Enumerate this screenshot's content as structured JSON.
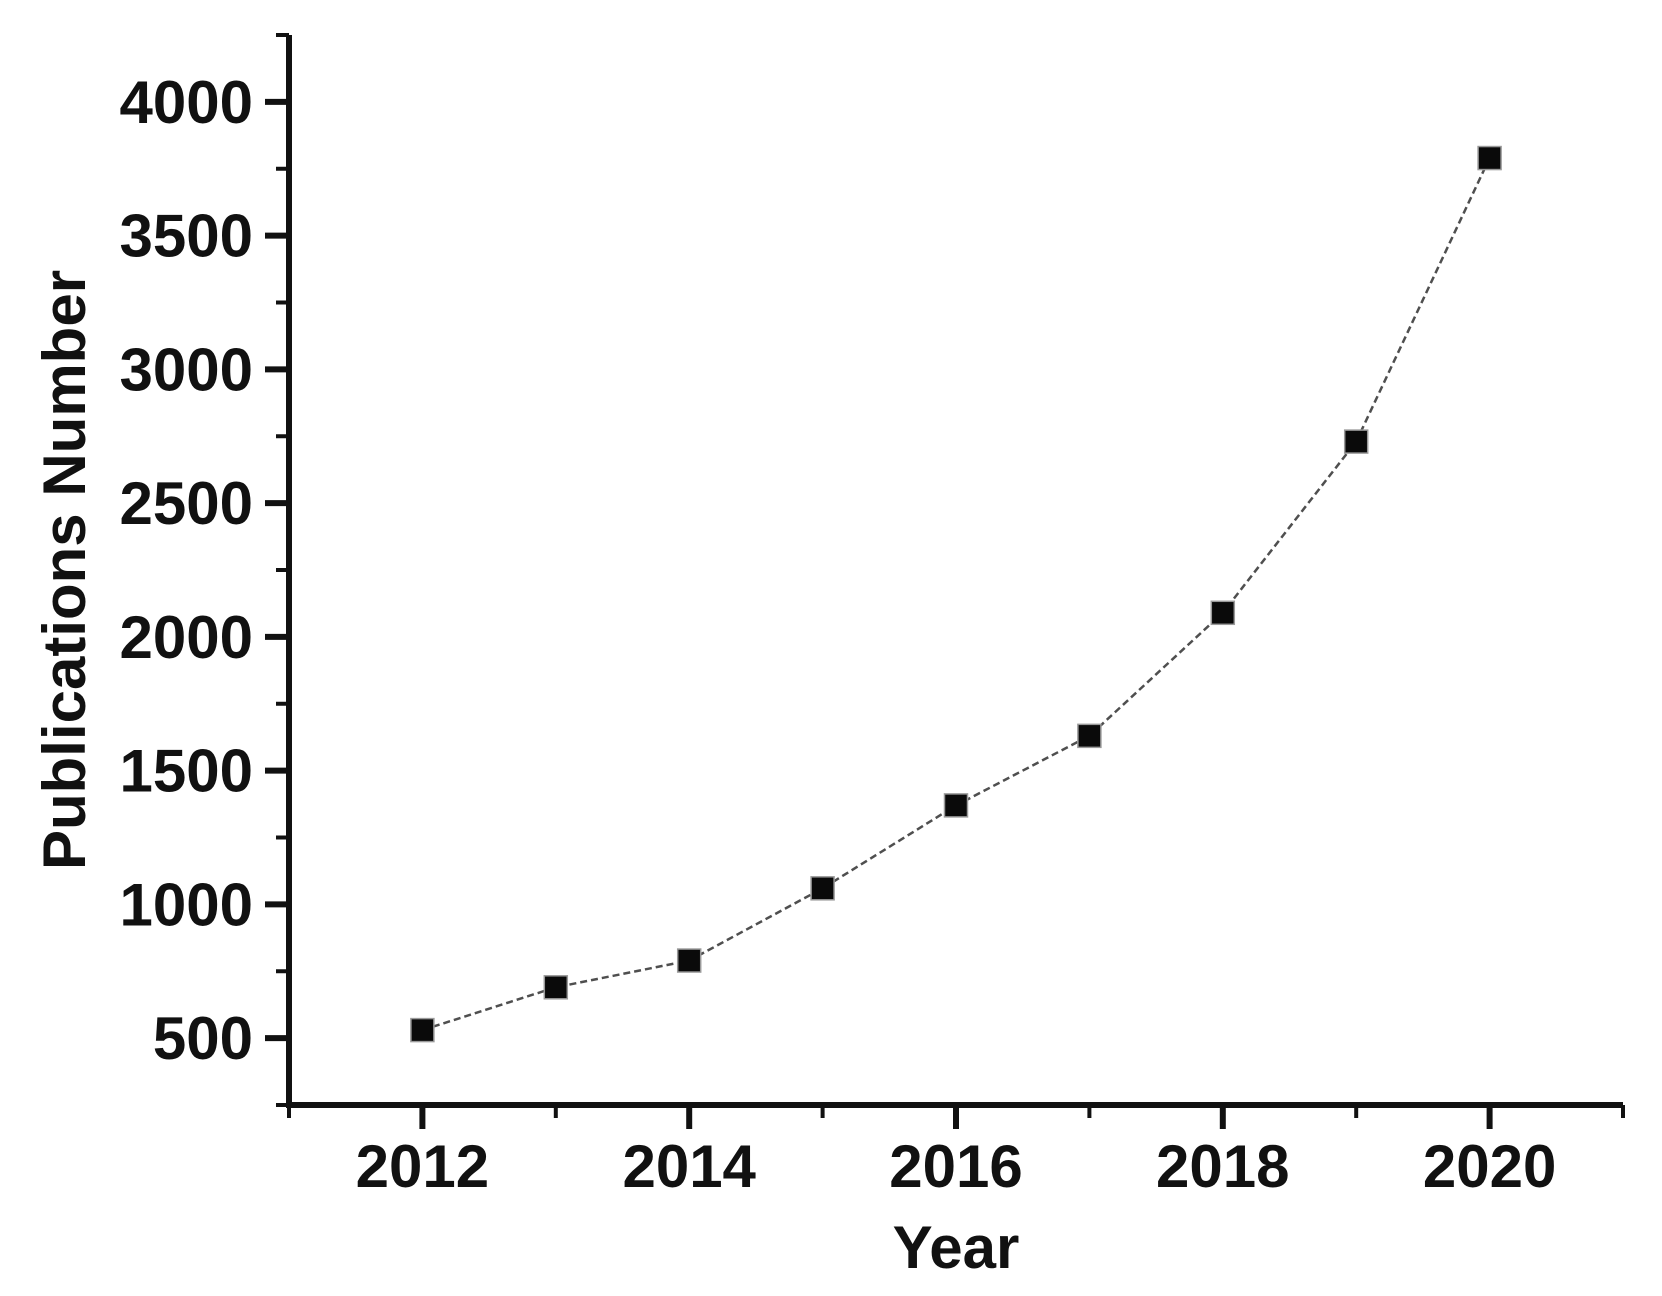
{
  "page": {
    "background": "#ffffff"
  },
  "chart_data": {
    "type": "line",
    "title": "",
    "xlabel": "Year",
    "ylabel": "Publications Number",
    "x": [
      2012,
      2013,
      2014,
      2015,
      2016,
      2017,
      2018,
      2019,
      2020
    ],
    "series": [
      {
        "name": "Publications Number",
        "values": [
          530,
          690,
          790,
          1060,
          1370,
          1630,
          2090,
          2730,
          3790
        ]
      }
    ],
    "xlim": [
      2011,
      2021
    ],
    "ylim": [
      250,
      4250
    ],
    "x_major_ticks": [
      2012,
      2014,
      2016,
      2018,
      2020
    ],
    "x_minor_ticks": [
      2011,
      2013,
      2015,
      2017,
      2019,
      2021
    ],
    "y_major_ticks": [
      500,
      1000,
      1500,
      2000,
      2500,
      3000,
      3500,
      4000
    ],
    "y_minor_ticks": [
      250,
      750,
      1250,
      1750,
      2250,
      2750,
      3250,
      3750,
      4250
    ],
    "grid": false,
    "legend": "none",
    "marker_style": "filled-square",
    "line_style": "thin-dashed",
    "colors": {
      "axis": "#111111",
      "text": "#111111",
      "marker": "#0a0a0a",
      "marker_edge": "#9a9a9a",
      "line": "#4f4f4f",
      "background": "#ffffff"
    }
  }
}
